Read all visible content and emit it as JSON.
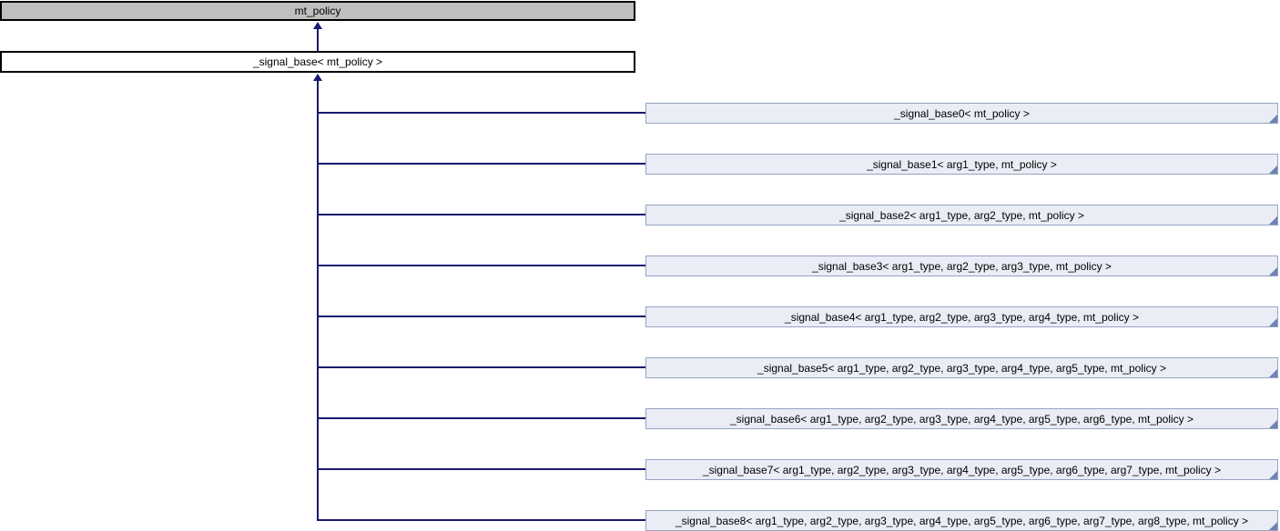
{
  "diagram": {
    "type": "class-inheritance-graph",
    "root": {
      "label": "mt_policy"
    },
    "base": {
      "label": "_signal_base< mt_policy >"
    },
    "derived": [
      {
        "label": "_signal_base0< mt_policy >"
      },
      {
        "label": "_signal_base1< arg1_type, mt_policy >"
      },
      {
        "label": "_signal_base2< arg1_type, arg2_type, mt_policy >"
      },
      {
        "label": "_signal_base3< arg1_type, arg2_type, arg3_type, mt_policy >"
      },
      {
        "label": "_signal_base4< arg1_type, arg2_type, arg3_type, arg4_type, mt_policy >"
      },
      {
        "label": "_signal_base5< arg1_type, arg2_type, arg3_type, arg4_type, arg5_type, mt_policy >"
      },
      {
        "label": "_signal_base6< arg1_type, arg2_type, arg3_type, arg4_type, arg5_type, arg6_type, mt_policy >"
      },
      {
        "label": "_signal_base7< arg1_type, arg2_type, arg3_type, arg4_type, arg5_type, arg6_type, arg7_type, mt_policy >"
      },
      {
        "label": "_signal_base8< arg1_type, arg2_type, arg3_type, arg4_type, arg5_type, arg6_type, arg7_type, arg8_type, mt_policy >"
      }
    ],
    "colors": {
      "background": "#ffffff",
      "root_fill": "#bfbfbf",
      "root_border": "#000000",
      "base_fill": "#ffffff",
      "base_border": "#000000",
      "derived_fill": "#eaedf5",
      "derived_border": "#96a3c4",
      "derived_fold": "#6d82b5",
      "edge": "#191970",
      "text": "#000000"
    }
  }
}
